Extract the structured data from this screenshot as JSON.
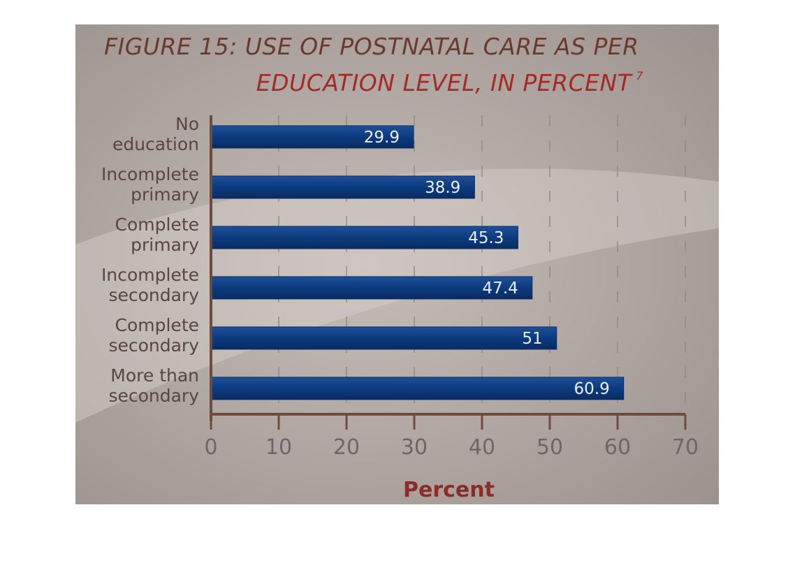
{
  "chart_data": {
    "type": "bar",
    "orientation": "horizontal",
    "title": "FIGURE 15: USE OF POSTNATAL CARE AS PER EDUCATION LEVEL, IN PERCENT",
    "title_line_1": "FIGURE 15: USE OF POSTNATAL CARE AS PER",
    "title_line_2": "EDUCATION LEVEL, IN PERCENT",
    "title_superscript": "7",
    "categories": [
      [
        "No",
        "education"
      ],
      [
        "Incomplete",
        "primary"
      ],
      [
        "Complete",
        "primary"
      ],
      [
        "Incomplete",
        "secondary"
      ],
      [
        "Complete",
        "secondary"
      ],
      [
        "More than",
        "secondary"
      ]
    ],
    "values": [
      29.9,
      38.9,
      45.3,
      47.4,
      51,
      60.9
    ],
    "value_labels": [
      "29.9",
      "38.9",
      "45.3",
      "47.4",
      "51",
      "60.9"
    ],
    "xlabel": "Percent",
    "ylabel": "",
    "xlim": [
      0,
      70
    ],
    "xticks": [
      0,
      10,
      20,
      30,
      40,
      50,
      60,
      70
    ],
    "xtick_labels": [
      "0",
      "10",
      "20",
      "30",
      "40",
      "50",
      "60",
      "70"
    ],
    "grid": "dashed vertical",
    "legend": "none",
    "colors": {
      "bar": "#0b3a7e",
      "bar_edge": "#1c4f9a",
      "background": "#a89e99",
      "axis": "#6e4b3f",
      "tick_label": "#6b6767",
      "category_label": "#5a4540",
      "value_label": "#eceef4",
      "xlabel": "#8a2d28",
      "title_line_1": "#6a3a2c",
      "title_line_2": "#a52a26"
    }
  }
}
